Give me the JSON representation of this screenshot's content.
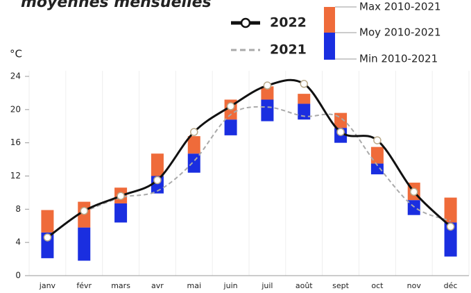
{
  "chart_data": {
    "type": "range-bar-line",
    "title": "moyennes mensuelles",
    "y_unit": "°C",
    "categories": [
      "janv",
      "févr",
      "mars",
      "avr",
      "mai",
      "juin",
      "juil",
      "août",
      "sept",
      "oct",
      "nov",
      "déc"
    ],
    "ylim": [
      0,
      24
    ],
    "yticks": [
      0,
      4,
      8,
      12,
      16,
      20,
      24
    ],
    "ranges": [
      {
        "name": "Min 2010-2021",
        "values": [
          2.1,
          1.8,
          6.4,
          9.9,
          12.4,
          16.9,
          18.6,
          18.8,
          16.0,
          12.2,
          7.3,
          2.3
        ]
      },
      {
        "name": "Moy 2010-2021",
        "values": [
          5.2,
          5.8,
          8.7,
          12.0,
          14.7,
          18.8,
          21.2,
          20.7,
          17.8,
          13.5,
          9.1,
          6.4
        ]
      },
      {
        "name": "Max 2010-2021",
        "values": [
          7.9,
          8.9,
          10.6,
          14.7,
          16.8,
          21.2,
          22.8,
          21.9,
          19.6,
          15.5,
          11.2,
          9.4
        ]
      }
    ],
    "range_colors": {
      "low": "#1a2ee0",
      "high": "#ef6b3a"
    },
    "series": [
      {
        "name": "2022",
        "color": "#111111",
        "style": "solid",
        "markers": true,
        "values": [
          4.6,
          7.8,
          9.6,
          11.5,
          17.3,
          20.4,
          22.9,
          23.1,
          17.3,
          16.3,
          10.1,
          5.9
        ]
      },
      {
        "name": "2021",
        "color": "#aaaaaa",
        "style": "dashed",
        "markers": false,
        "values": [
          null,
          7.7,
          9.4,
          10.2,
          13.8,
          19.4,
          20.3,
          19.2,
          19.0,
          13.3,
          8.3,
          6.6
        ]
      }
    ]
  }
}
